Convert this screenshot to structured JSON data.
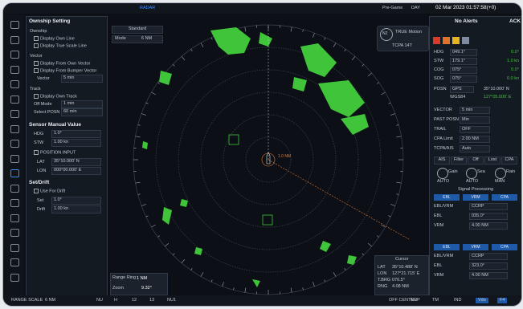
{
  "top_bar": {
    "mode": "RADAR",
    "presentation": "Pre-Game",
    "palette": "DAY",
    "datetime": "02 Mar 2023 01:57:58(+0)"
  },
  "left_panel": {
    "title": "Ownship Setting",
    "ownship": {
      "heading": "Ownship",
      "items": [
        "Display Own Line",
        "Display True Scale Line"
      ]
    },
    "vector": {
      "heading": "Vector",
      "items": [
        "Display From Own Vector",
        "Display From Bumper Vector"
      ],
      "label": "Vector",
      "value": "5 min"
    },
    "track": {
      "heading": "Track",
      "item": "Display Own Track",
      "rows": [
        [
          "Off Mode",
          "1 min"
        ],
        [
          "Select POSN",
          "60 min"
        ]
      ]
    },
    "sensor": {
      "heading": "Sensor Manual Value",
      "rows": [
        [
          "HDG",
          "1.0°"
        ],
        [
          "STW",
          "1.00 kn"
        ]
      ],
      "check": "POSITION INPUT",
      "pos_rows": [
        [
          "LAT",
          "35°10.000' N"
        ],
        [
          "LON",
          "000°00.000' E"
        ]
      ]
    },
    "set_drift": {
      "heading": "Set/Drift",
      "check": "Use For Drift",
      "rows": [
        [
          "Set",
          "1.0°"
        ],
        [
          "Drift",
          "1.00 kn"
        ]
      ]
    }
  },
  "radar_top": {
    "mode": "Standard",
    "label": "Mode",
    "value": "6 NM"
  },
  "motion": {
    "north": "N2",
    "motion": "TRUE Motion",
    "tcpa": "TCPA 14T"
  },
  "center_label": "1.0 NM",
  "range_panel": {
    "rows": [
      [
        "Range Ring",
        "1 NM"
      ],
      [
        "Zoom",
        "9.32°"
      ]
    ]
  },
  "cursor": {
    "title": "Cursor",
    "rows": [
      [
        "LAT",
        "35°10.488' N"
      ],
      [
        "LON",
        "127°21.715' E"
      ],
      [
        "T.BRG",
        "076.5°"
      ],
      [
        "RNG",
        "4.08 NM"
      ]
    ]
  },
  "right_panel": {
    "alerts": "No Alerts",
    "ack": "ACK",
    "nav_rows": [
      [
        "HDG",
        "049.1°",
        "0.0°"
      ],
      [
        "STW",
        "179.1°",
        "1.0 kn"
      ],
      [
        "COG",
        "075°",
        "0.0°"
      ],
      [
        "SOG",
        "075°",
        "0.0 kn"
      ]
    ],
    "posn": {
      "label": "POSN",
      "sensor": "GPS",
      "lat": "35°10.000' N",
      "datum": "WGS84",
      "lon": "127°05.000' E"
    },
    "settings": [
      [
        "VECTOR",
        "5 min"
      ],
      [
        "PAST POSN",
        "Min"
      ],
      [
        "TRAIL",
        "OFF"
      ],
      [
        "CPA Limit",
        "2.00 NM"
      ],
      [
        "TCPA/AIS",
        "Auto"
      ]
    ],
    "ais_buttons": [
      "AIS",
      "Filter",
      "Off",
      "Lost",
      "CPA"
    ],
    "knobs": [
      [
        "Gain",
        "AUTO"
      ],
      [
        "Sea",
        "AUTO"
      ],
      [
        "Rain",
        "MAN"
      ]
    ],
    "signal": "Signal Processing",
    "tabs": [
      "EBL",
      "VRM",
      "CPA"
    ],
    "block1": [
      [
        "EBL/VRM",
        "CCRP"
      ],
      [
        "EBL",
        "035.0°"
      ],
      [
        "VRM",
        "4.00 NM"
      ]
    ],
    "block2": [
      [
        "EBL/VRM",
        "CCRP"
      ],
      [
        "EBL",
        "323.0°"
      ],
      [
        "VRM",
        "4.00 NM"
      ]
    ]
  },
  "bottom_bar": {
    "left": [
      "RANGE SCALE",
      "6 NM"
    ],
    "mid": [
      "NU",
      "H",
      "12",
      "13",
      "NU1"
    ],
    "right": [
      "OFF CENTER",
      "NUP",
      "TM",
      "IND",
      "Vdo",
      "F4"
    ]
  }
}
